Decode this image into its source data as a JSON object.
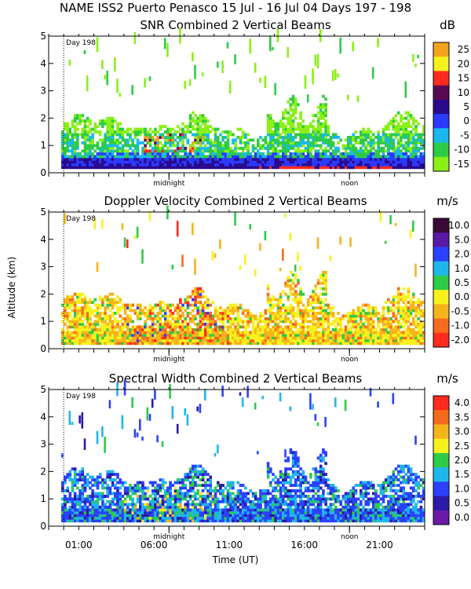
{
  "figure": {
    "title": "NAME ISS2 Puerto Penasco  15 Jul - 16 Jul 04 Days 197 - 198",
    "shared_ylabel": "Altitude (km)",
    "xlabel": "Time (UT)"
  },
  "chart_data": [
    {
      "type": "heatmap",
      "title": "SNR Combined 2 Vertical Beams",
      "unit": "dB",
      "xlabel": "Time (UT)",
      "ylabel": "Altitude (km)",
      "ylim": [
        0,
        5
      ],
      "yticks": [
        0,
        1,
        2,
        3,
        4,
        5
      ],
      "xlim_hours": [
        -1,
        24
      ],
      "xticks": [
        "01:00",
        "06:00",
        "11:00",
        "16:00",
        "21:00"
      ],
      "annotations": [
        "Day 198",
        "midnight",
        "noon"
      ],
      "colorbar": {
        "labels": [
          "25",
          "20",
          "15",
          "10",
          "5",
          "0",
          "-5",
          "-10",
          "-15"
        ]
      },
      "summary": "Strongest SNR below 0.6 km; weaker echoes extend to ~2 km, with patches up to ~4.5 km near 14:00-17:00 UT"
    },
    {
      "type": "heatmap",
      "title": "Doppler Velocity Combined 2 Vertical Beams",
      "unit": "m/s",
      "xlabel": "Time (UT)",
      "ylabel": "Altitude (km)",
      "ylim": [
        0,
        5
      ],
      "yticks": [
        0,
        1,
        2,
        3,
        4,
        5
      ],
      "xlim_hours": [
        -1,
        24
      ],
      "xticks": [
        "01:00",
        "06:00",
        "11:00",
        "16:00",
        "21:00"
      ],
      "annotations": [
        "Day 198",
        "midnight",
        "noon"
      ],
      "colorbar": {
        "labels": [
          "10.0",
          "5.0",
          "2.0",
          "1.0",
          "0.5",
          "0.0",
          "-0.5",
          "-1.0",
          "-2.0"
        ]
      },
      "summary": "Mostly -0.5 to 0.5 m/s below 2 km; downward (-1 to -2 m/s) streaks around 05:00-10:00 UT"
    },
    {
      "type": "heatmap",
      "title": "Spectral Width Combined 2 Vertical Beams",
      "unit": "m/s",
      "xlabel": "Time (UT)",
      "ylabel": "Altitude (km)",
      "ylim": [
        0,
        5
      ],
      "yticks": [
        0,
        1,
        2,
        3,
        4,
        5
      ],
      "xlim_hours": [
        -1,
        24
      ],
      "xticks": [
        "01:00",
        "06:00",
        "11:00",
        "16:00",
        "21:00"
      ],
      "annotations": [
        "Day 198",
        "midnight",
        "noon"
      ],
      "colorbar": {
        "labels": [
          "4.0",
          "3.5",
          "3.0",
          "2.5",
          "2.0",
          "1.5",
          "1.0",
          "0.5",
          "0.0"
        ]
      },
      "summary": "Mostly 0.5-1.0 m/s; wider (2-3 m/s) spectra near 06:00-09:00 UT below 1.5 km"
    }
  ]
}
